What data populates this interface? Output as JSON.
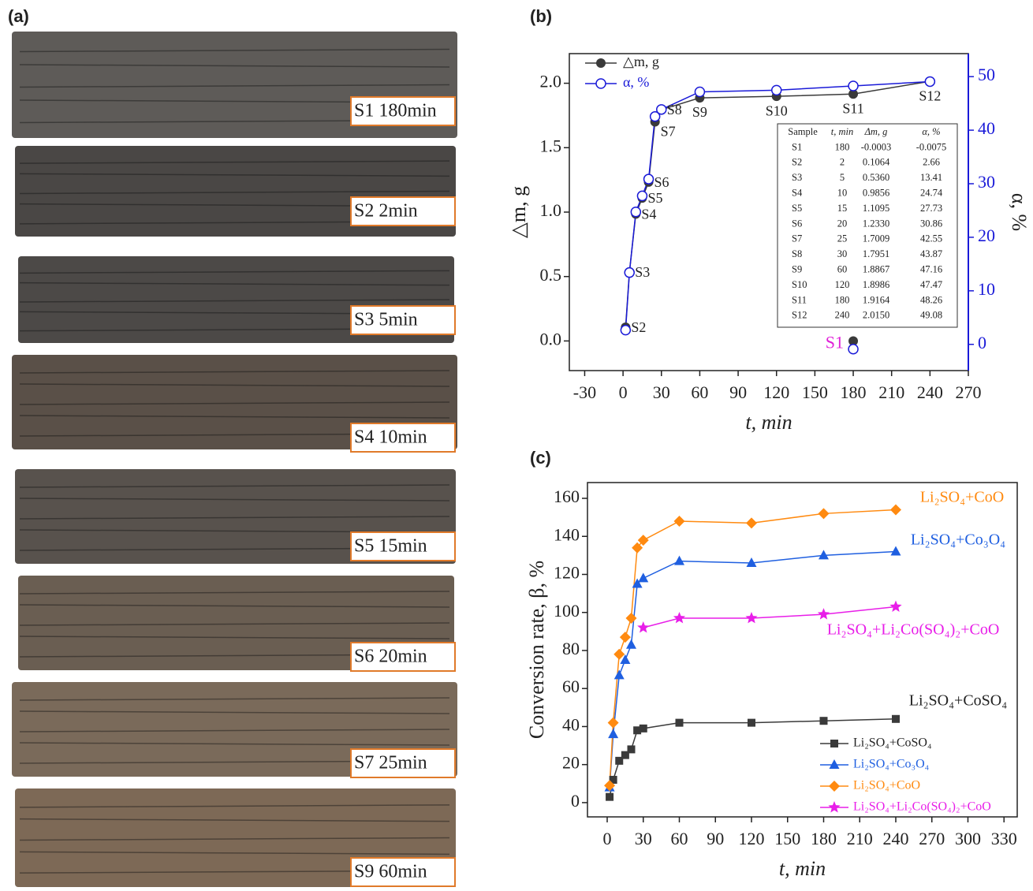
{
  "panel_labels": [
    "(a)",
    "(b)",
    "(c)"
  ],
  "photos": {
    "labels": [
      "S1 180min",
      "S2 2min",
      "S3 5min",
      "S4 10min",
      "S5 15min",
      "S6 20min",
      "S7 25min",
      "S9 60min"
    ]
  },
  "chart_data": [
    {
      "type": "line",
      "xlabel": "t, min",
      "ylabel": "△m, g",
      "y2label": "α, %",
      "xlim": [
        -42,
        270
      ],
      "xticks": [
        -30,
        0,
        30,
        60,
        90,
        120,
        150,
        180,
        210,
        240,
        270
      ],
      "ylim": [
        -0.23,
        2.23
      ],
      "yticks": [
        {
          "value": 0,
          "label": "0.0"
        },
        0.5,
        {
          "value": 1,
          "label": "1.0"
        },
        1.5,
        {
          "value": 2,
          "label": "2.0"
        }
      ],
      "y2lim": [
        -4.9,
        54.3
      ],
      "y2ticks": [
        0,
        10,
        20,
        30,
        40,
        50
      ],
      "y2color": "#1a1ad8",
      "legend": "upper left",
      "series": [
        {
          "name": "△m, g",
          "color": "#3a3a3a",
          "marker": "filled-circle",
          "x": [
            2,
            5,
            10,
            15,
            20,
            25,
            30,
            60,
            120,
            180,
            240
          ],
          "values": [
            0.1064,
            0.536,
            0.9856,
            1.1095,
            1.233,
            1.7009,
            1.7951,
            1.8867,
            1.8986,
            1.9164,
            2.015
          ]
        },
        {
          "name": "α, %",
          "color": "#1a1ad8",
          "marker": "open-circle",
          "axis": "y2",
          "x": [
            2,
            5,
            10,
            15,
            20,
            25,
            30,
            60,
            120,
            180,
            240
          ],
          "values": [
            2.66,
            13.41,
            24.74,
            27.73,
            30.86,
            42.55,
            43.87,
            47.16,
            47.47,
            48.26,
            49.08
          ]
        }
      ],
      "point_labels": [
        "S2",
        "S3",
        "S4",
        "S5",
        "S6",
        "S7",
        "S8",
        "S9",
        "S10",
        "S11",
        "S12"
      ],
      "extra_point": {
        "label": "S1",
        "label_color": "#e020d8",
        "x": 180,
        "value": -0.0003,
        "value2": -0.0075
      },
      "table": {
        "header": [
          "Sample",
          "t, min",
          "Δm, g",
          "α, %"
        ],
        "rows": [
          [
            "S1",
            "180",
            "-0.0003",
            "-0.0075"
          ],
          [
            "S2",
            "2",
            "0.1064",
            "2.66"
          ],
          [
            "S3",
            "5",
            "0.5360",
            "13.41"
          ],
          [
            "S4",
            "10",
            "0.9856",
            "24.74"
          ],
          [
            "S5",
            "15",
            "1.1095",
            "27.73"
          ],
          [
            "S6",
            "20",
            "1.2330",
            "30.86"
          ],
          [
            "S7",
            "25",
            "1.7009",
            "42.55"
          ],
          [
            "S8",
            "30",
            "1.7951",
            "43.87"
          ],
          [
            "S9",
            "60",
            "1.8867",
            "47.16"
          ],
          [
            "S10",
            "120",
            "1.8986",
            "47.47"
          ],
          [
            "S11",
            "180",
            "1.9164",
            "48.26"
          ],
          [
            "S12",
            "240",
            "2.0150",
            "49.08"
          ]
        ]
      }
    },
    {
      "type": "line",
      "xlabel": "t, min",
      "ylabel": "Conversion rate, β, %",
      "xlim": [
        -16.4,
        341
      ],
      "xticks": [
        0,
        30,
        60,
        90,
        120,
        150,
        180,
        210,
        240,
        270,
        300,
        330
      ],
      "ylim": [
        -7.5,
        168.3
      ],
      "yticks": [
        0,
        20,
        40,
        60,
        80,
        100,
        120,
        140,
        160
      ],
      "legend": "lower right",
      "series": [
        {
          "name": "Li₂SO₄+CoSO₄",
          "color": "#3a3a3a",
          "marker": "square",
          "x": [
            2,
            5,
            10,
            15,
            20,
            25,
            30,
            60,
            120,
            180,
            240
          ],
          "values": [
            3,
            12,
            22,
            25,
            28,
            38,
            39,
            42,
            42,
            43,
            44
          ]
        },
        {
          "name": "Li₂SO₄+Co₃O₄",
          "color": "#1f5fe0",
          "marker": "triangle",
          "x": [
            2,
            5,
            10,
            15,
            20,
            25,
            30,
            60,
            120,
            180,
            240
          ],
          "values": [
            8,
            36,
            67,
            75,
            83,
            115,
            118,
            127,
            126,
            130,
            132
          ]
        },
        {
          "name": "Li₂SO₄+CoO",
          "color": "#ff8a10",
          "marker": "diamond",
          "x": [
            2,
            5,
            10,
            15,
            20,
            25,
            30,
            60,
            120,
            180,
            240
          ],
          "values": [
            9,
            42,
            78,
            87,
            97,
            134,
            138,
            148,
            147,
            152,
            154
          ]
        },
        {
          "name": "Li₂SO₄+Li₂Co(SO₄)₂+CoO",
          "color": "#e81ee8",
          "marker": "star",
          "x": [
            30,
            60,
            120,
            180,
            240
          ],
          "values": [
            92,
            97,
            97,
            99,
            103
          ]
        }
      ]
    }
  ]
}
